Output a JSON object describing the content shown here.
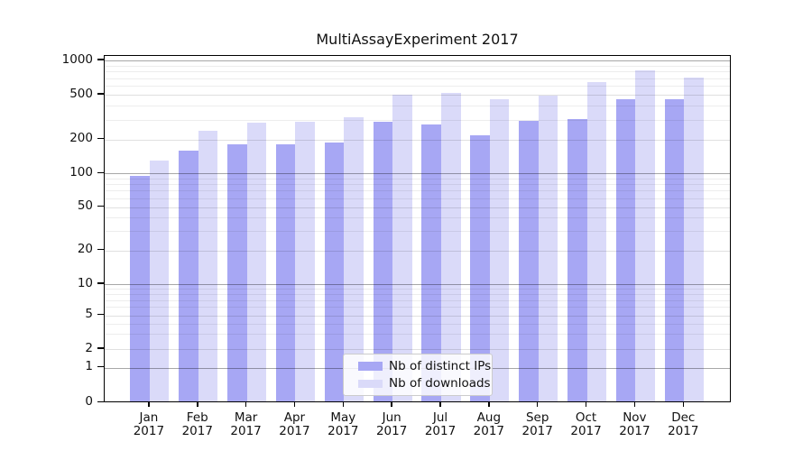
{
  "chart_data": {
    "type": "bar",
    "title": "MultiAssayExperiment 2017",
    "categories": [
      "Jan",
      "Feb",
      "Mar",
      "Apr",
      "May",
      "Jun",
      "Jul",
      "Aug",
      "Sep",
      "Oct",
      "Nov",
      "Dec"
    ],
    "category_year": "2017",
    "series": [
      {
        "name": "Nb of distinct IPs",
        "color": "#a7a7f4",
        "values": [
          95,
          160,
          180,
          183,
          187,
          288,
          272,
          220,
          295,
          302,
          455,
          456
        ]
      },
      {
        "name": "Nb of downloads",
        "color": "#dadaf9",
        "values": [
          130,
          240,
          280,
          288,
          315,
          497,
          520,
          452,
          495,
          648,
          815,
          706
        ]
      }
    ],
    "yscale": "log",
    "yticks": [
      0,
      1,
      2,
      5,
      10,
      20,
      50,
      100,
      200,
      500,
      1000
    ],
    "ylim": [
      0,
      1000
    ],
    "grid": "horizontal major and minor log gridlines",
    "legend_position": "inside lower-center-left"
  }
}
